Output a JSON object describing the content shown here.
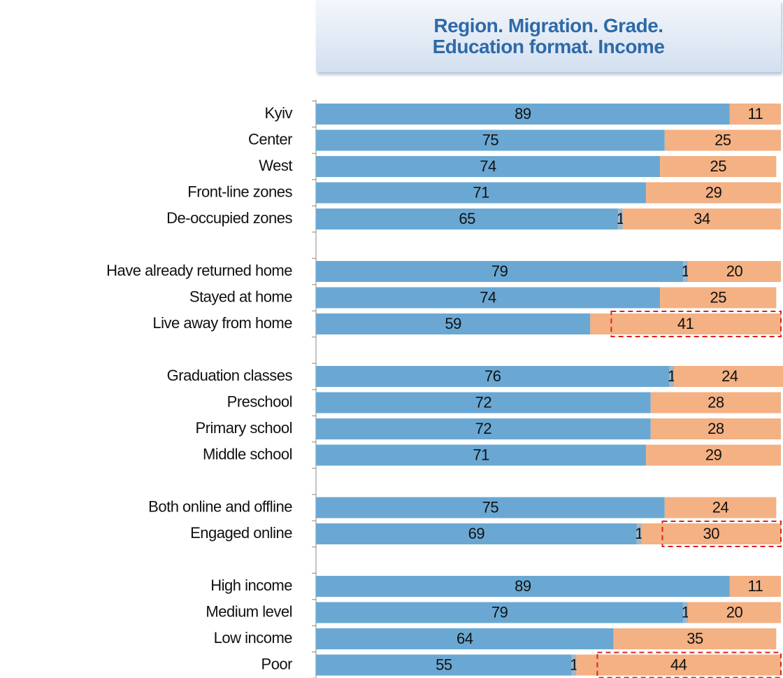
{
  "chart_data": {
    "type": "stacked-bar-horizontal",
    "title": "Region. Migration. Grade. Education format. Income",
    "categories": [
      "Kyiv",
      "Center",
      "West",
      "Front-line zones",
      "De-occupied zones",
      null,
      "Have already returned home",
      "Stayed at home",
      "Live away from home",
      null,
      "Graduation classes",
      "Preschool",
      "Primary school",
      "Middle school",
      null,
      "Both online and offline",
      "Engaged online",
      null,
      "High income",
      "Medium level",
      "Low income",
      "Poor"
    ],
    "series": [
      {
        "color": "#6aa8d3",
        "values": [
          89,
          75,
          74,
          71,
          65,
          null,
          79,
          74,
          59,
          null,
          76,
          72,
          72,
          71,
          null,
          75,
          69,
          null,
          89,
          79,
          64,
          55
        ]
      },
      {
        "color": "#9fb6c8",
        "values": [
          null,
          null,
          null,
          null,
          1,
          null,
          1,
          null,
          null,
          null,
          1,
          null,
          null,
          null,
          null,
          null,
          1,
          null,
          null,
          1,
          null,
          1
        ]
      },
      {
        "color": "#f4b183",
        "values": [
          11,
          25,
          25,
          29,
          34,
          null,
          20,
          25,
          41,
          null,
          24,
          28,
          28,
          29,
          null,
          24,
          30,
          null,
          11,
          20,
          35,
          44
        ]
      }
    ],
    "xlim": [
      0,
      100
    ],
    "highlights": [
      "Live away from home",
      "Engaged online",
      "Poor"
    ],
    "highlight_color": "#e02020"
  }
}
